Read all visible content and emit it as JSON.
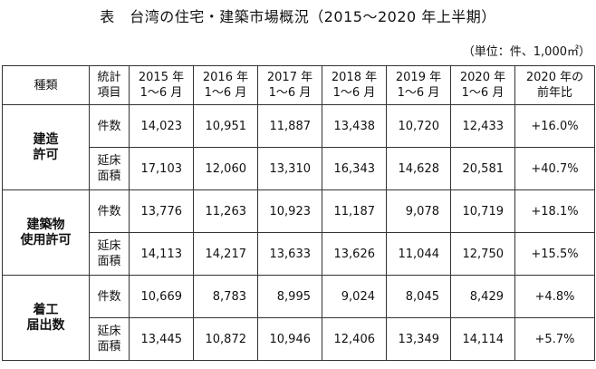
{
  "title": "表　台湾の住宅・建築市場概況（2015～2020 年上半期）",
  "unit": "（単位：件、1,000㎡）",
  "headers": {
    "type_l1": "種類",
    "stat_l1": "統計",
    "stat_l2": "項目",
    "years": [
      {
        "l1": "2015 年",
        "l2": "1～6 月"
      },
      {
        "l1": "2016 年",
        "l2": "1～6 月"
      },
      {
        "l1": "2017 年",
        "l2": "1～6 月"
      },
      {
        "l1": "2018 年",
        "l2": "1～6 月"
      },
      {
        "l1": "2019 年",
        "l2": "1～6 月"
      },
      {
        "l1": "2020 年",
        "l2": "1～6 月"
      }
    ],
    "yoy_l1": "2020 年の",
    "yoy_l2": "前年比"
  },
  "categories": [
    {
      "name_l1": "建造",
      "name_l2": "許可",
      "rows": [
        {
          "metric_l1": "件数",
          "metric_l2": "",
          "values": [
            "14,023",
            "10,951",
            "11,887",
            "13,438",
            "10,720",
            "12,433"
          ],
          "yoy": "+16.0%"
        },
        {
          "metric_l1": "延床",
          "metric_l2": "面積",
          "values": [
            "17,103",
            "12,060",
            "13,310",
            "16,343",
            "14,628",
            "20,581"
          ],
          "yoy": "+40.7%"
        }
      ]
    },
    {
      "name_l1": "建築物",
      "name_l2": "使用許可",
      "rows": [
        {
          "metric_l1": "件数",
          "metric_l2": "",
          "values": [
            "13,776",
            "11,263",
            "10,923",
            "11,187",
            "9,078",
            "10,719"
          ],
          "yoy": "+18.1%"
        },
        {
          "metric_l1": "延床",
          "metric_l2": "面積",
          "values": [
            "14,113",
            "14,217",
            "13,633",
            "13,626",
            "11,044",
            "12,750"
          ],
          "yoy": "+15.5%"
        }
      ]
    },
    {
      "name_l1": "着工",
      "name_l2": "届出数",
      "rows": [
        {
          "metric_l1": "件数",
          "metric_l2": "",
          "values": [
            "10,669",
            "8,783",
            "8,995",
            "9,024",
            "8,045",
            "8,429"
          ],
          "yoy": "+4.8%"
        },
        {
          "metric_l1": "延床",
          "metric_l2": "面積",
          "values": [
            "13,445",
            "10,872",
            "10,946",
            "12,406",
            "13,349",
            "14,114"
          ],
          "yoy": "+5.7%"
        }
      ]
    }
  ]
}
